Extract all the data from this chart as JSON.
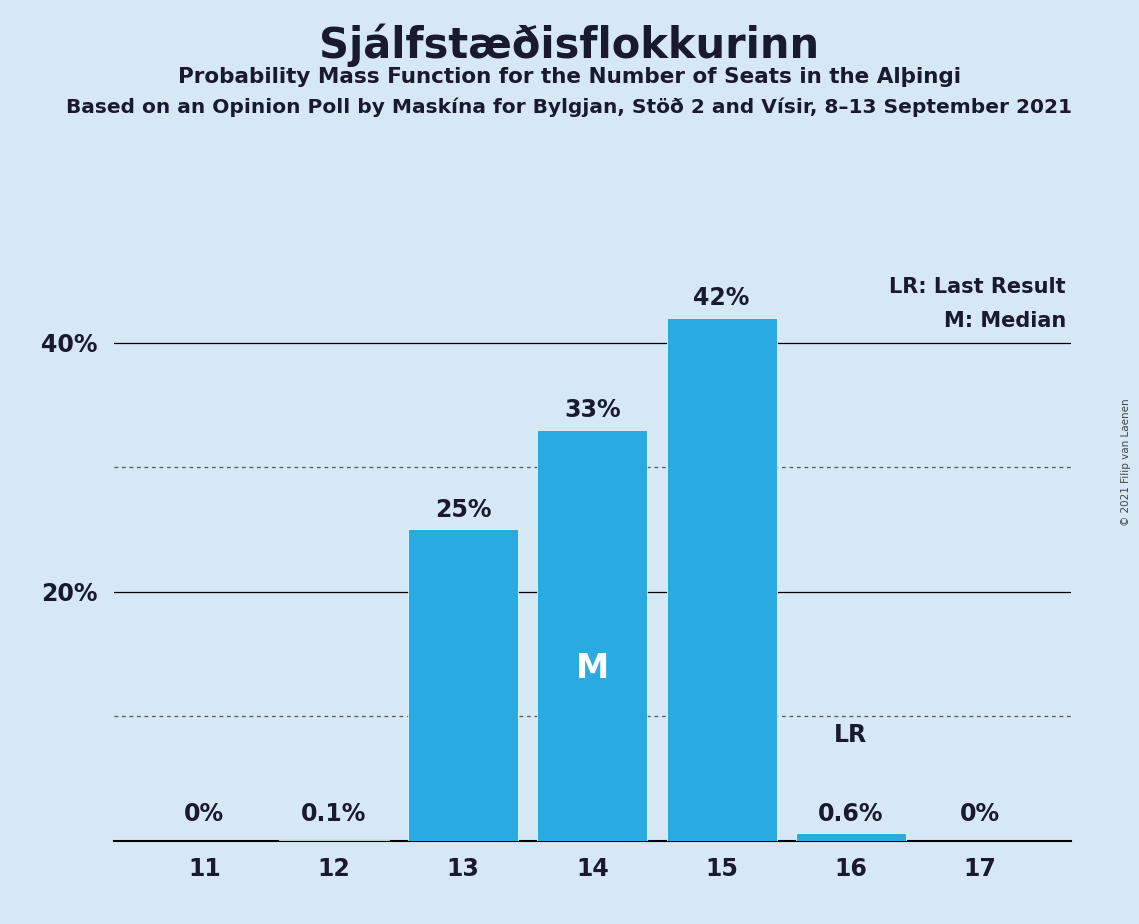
{
  "title": "Sjálfstæðisflokkurinn",
  "subtitle1": "Probability Mass Function for the Number of Seats in the Alþingi",
  "subtitle2": "Based on an Opinion Poll by Maskína for Bylgjan, Stöð 2 and Vísir, 8–13 September 2021",
  "copyright": "© 2021 Filip van Laenen",
  "seats": [
    11,
    12,
    13,
    14,
    15,
    16,
    17
  ],
  "probabilities": [
    0.0,
    0.1,
    25.0,
    33.0,
    42.0,
    0.6,
    0.0
  ],
  "bar_color": "#29ABE2",
  "background_color": "#D6E8F5",
  "text_color": "#1a1a2e",
  "bar_labels": [
    "0%",
    "0.1%",
    "25%",
    "33%",
    "42%",
    "0.6%",
    "0%"
  ],
  "median_seat": 14,
  "last_result_seat": 16,
  "legend_lr": "LR: Last Result",
  "legend_m": "M: Median",
  "ylim": [
    0,
    46
  ],
  "dotted_grid_lines": [
    10,
    30
  ],
  "solid_grid_lines": [
    20,
    40
  ],
  "ytick_positions": [
    20,
    40
  ],
  "ytick_labels": [
    "20%",
    "40%"
  ]
}
